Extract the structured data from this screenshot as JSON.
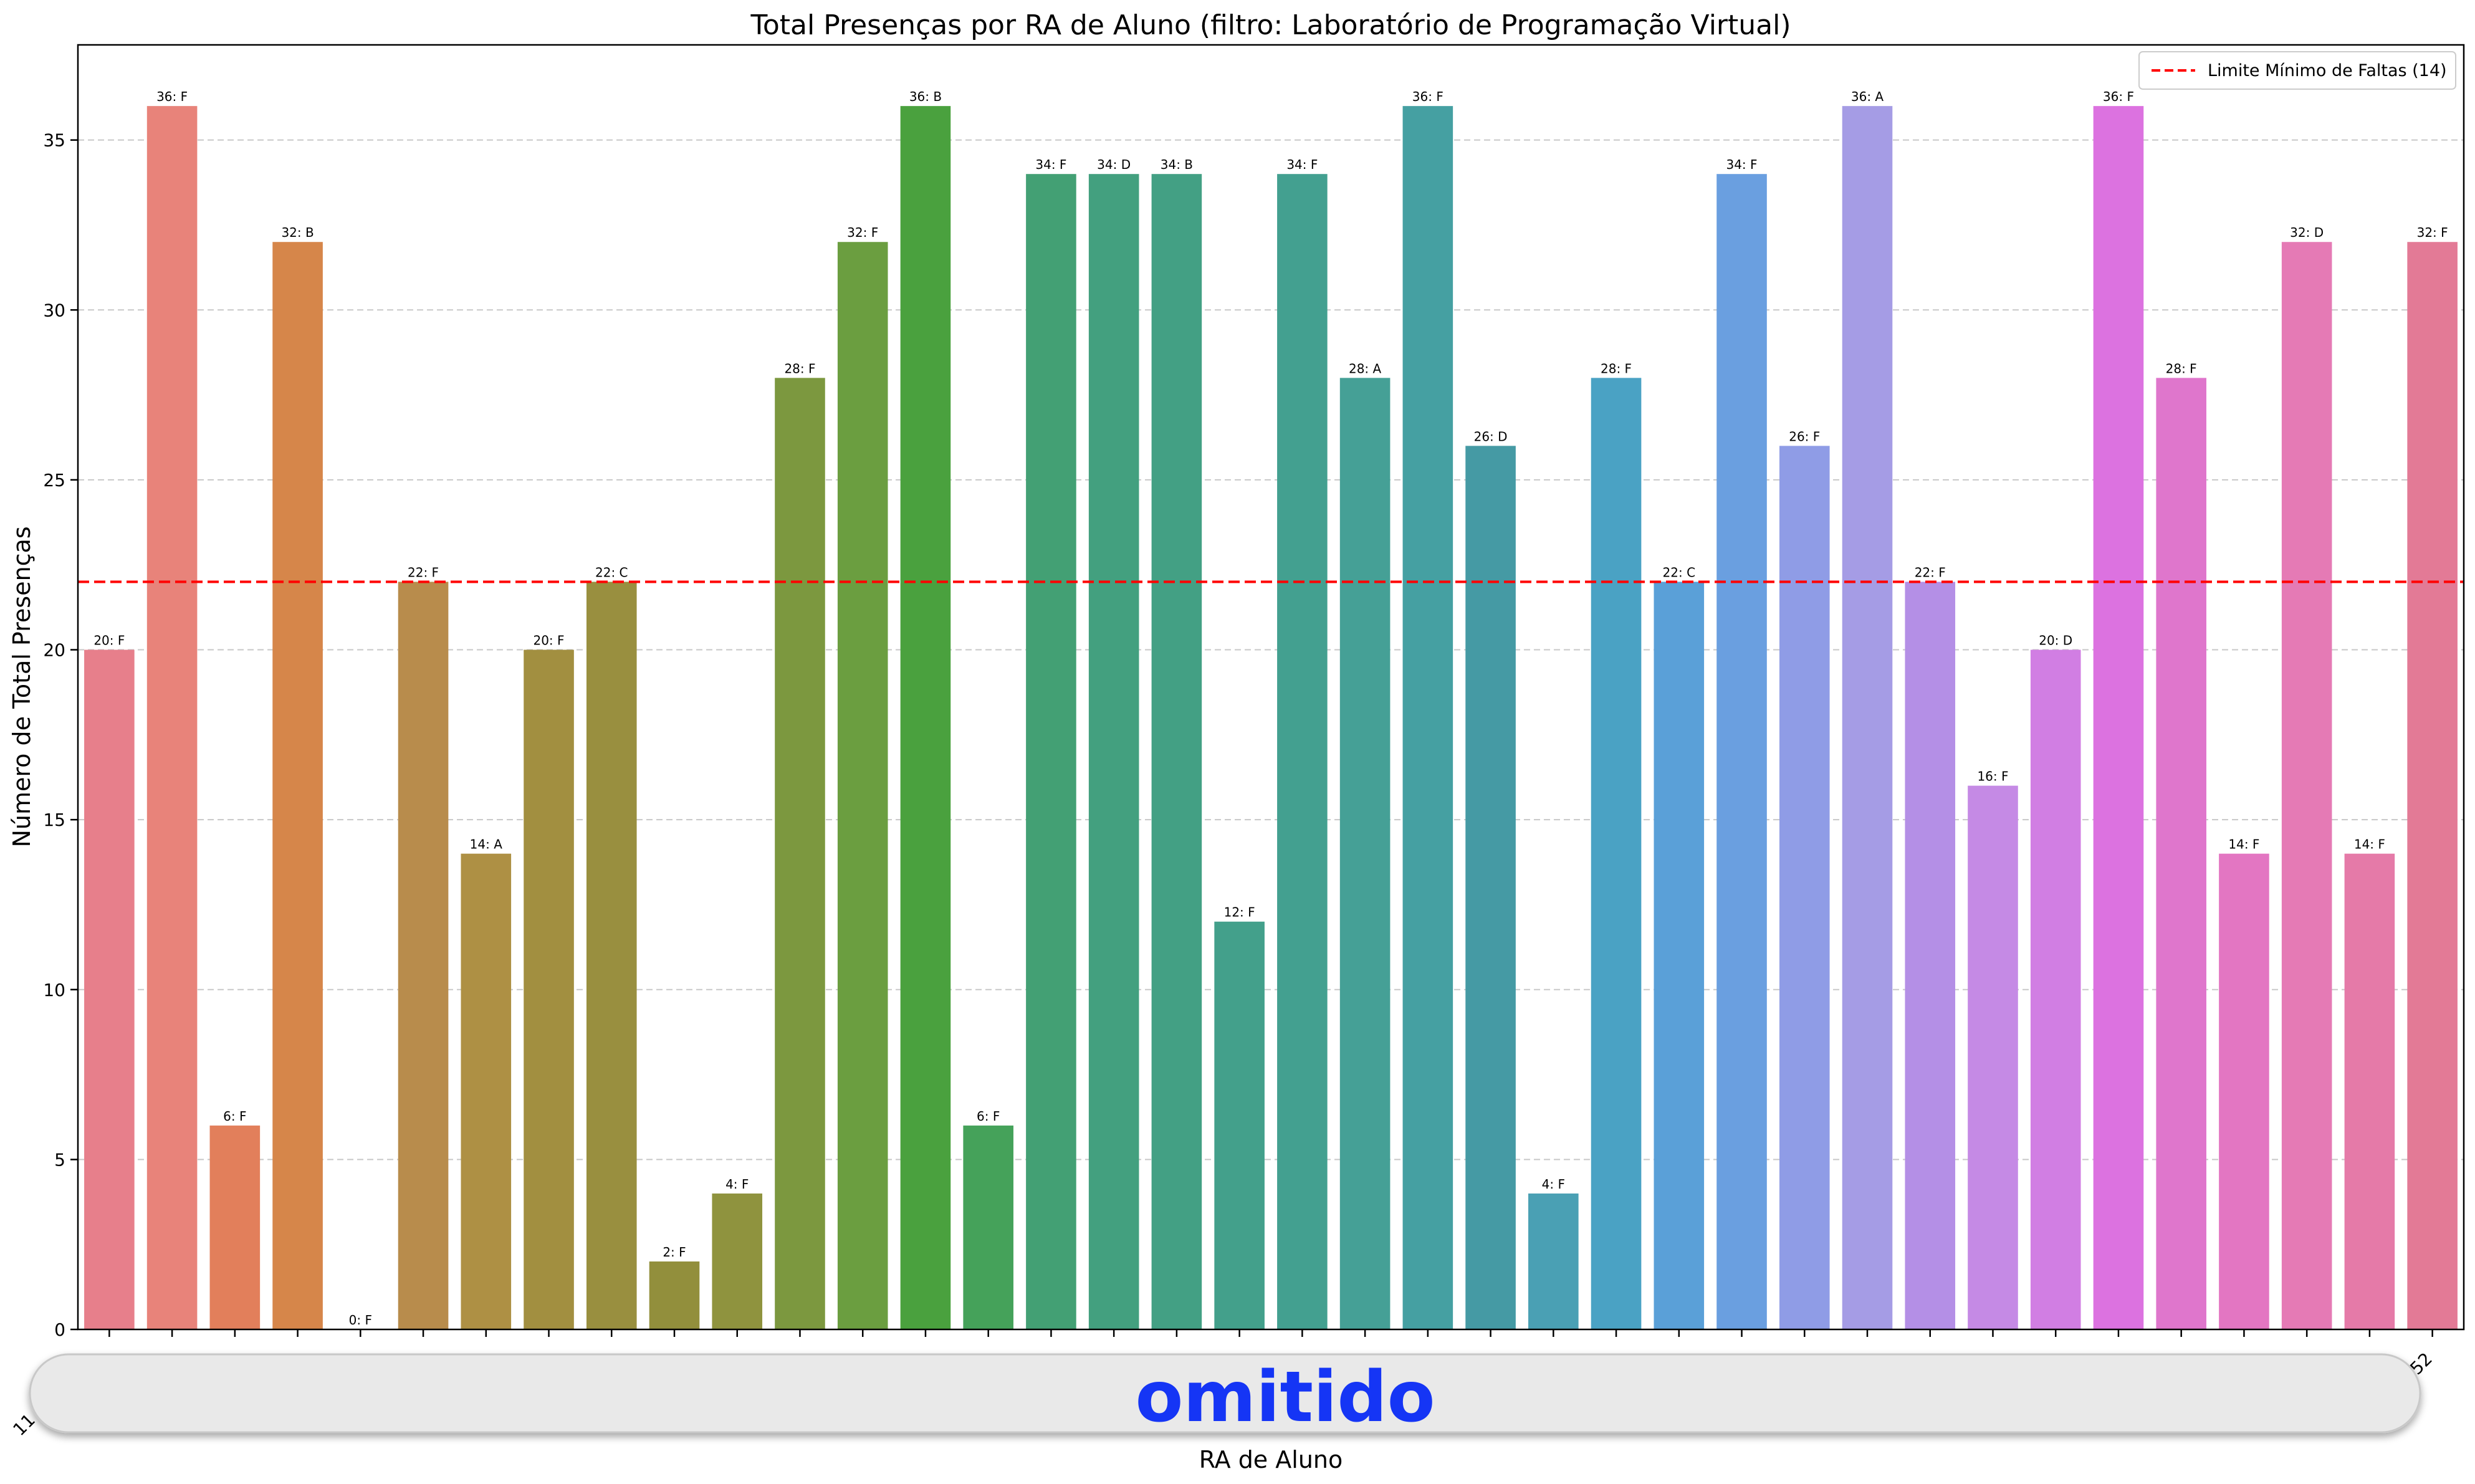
{
  "chart_data": {
    "type": "bar",
    "title": "Total Presenças por RA de Aluno (filtro: Laboratório de Programação Virtual)",
    "xlabel": "RA de Aluno",
    "ylabel": "Número de Total Presenças",
    "ylim": [
      0,
      37.8
    ],
    "yticks": [
      "0",
      "5",
      "10",
      "15",
      "20",
      "25",
      "30",
      "35"
    ],
    "ytick_values": [
      0,
      5,
      10,
      15,
      20,
      25,
      30,
      35
    ],
    "grid": "y dashed",
    "xtick_first_visible": "11",
    "xtick_last_visible": "52",
    "values": [
      20,
      36,
      6,
      32,
      0,
      22,
      14,
      20,
      22,
      2,
      4,
      28,
      32,
      36,
      6,
      34,
      34,
      34,
      12,
      34,
      28,
      36,
      26,
      4,
      28,
      22,
      34,
      26,
      36,
      22,
      16,
      20,
      36,
      28,
      14,
      32,
      14,
      32
    ],
    "bar_labels": [
      "20: F",
      "36: F",
      "6: F",
      "32: B",
      "0: F",
      "22: F",
      "14: A",
      "20: F",
      "22: C",
      "2: F",
      "4: F",
      "28: F",
      "32: F",
      "36: B",
      "6: F",
      "34: F",
      "34: D",
      "34: B",
      "12: F",
      "34: F",
      "28: A",
      "36: F",
      "26: D",
      "4: F",
      "28: F",
      "22: C",
      "34: F",
      "26: F",
      "36: A",
      "22: F",
      "16: F",
      "20: D",
      "36: F",
      "28: F",
      "14: F",
      "32: D",
      "14: F",
      "32: F"
    ],
    "colors": [
      "#e77f8b",
      "#e8837a",
      "#e27f5b",
      "#d6864a",
      "#cf8c44",
      "#b88c4c",
      "#ae9044",
      "#a28f40",
      "#998f3f",
      "#928f3c",
      "#8f933e",
      "#7c983f",
      "#6b9e40",
      "#4aa13e",
      "#45a25a",
      "#43a074",
      "#43a07f",
      "#43a084",
      "#43a08b",
      "#43a090",
      "#45a096",
      "#45a0a2",
      "#459aa4",
      "#4aa0b4",
      "#4aa2c4",
      "#5aa0d8",
      "#6a9fe0",
      "#8f9ce6",
      "#a59ce5",
      "#b48fe6",
      "#c58ae5",
      "#d17ee3",
      "#dc72e0",
      "#df76cc",
      "#e376c2",
      "#e57ab5",
      "#e57aa8",
      "#e37a96"
    ],
    "reference_line": {
      "value": 22,
      "label": "Limite Mínimo de Faltas (14)",
      "color": "#ff0000",
      "style": "dashed"
    },
    "legend_position": "top-right"
  },
  "overlay": {
    "text": "omitido"
  }
}
